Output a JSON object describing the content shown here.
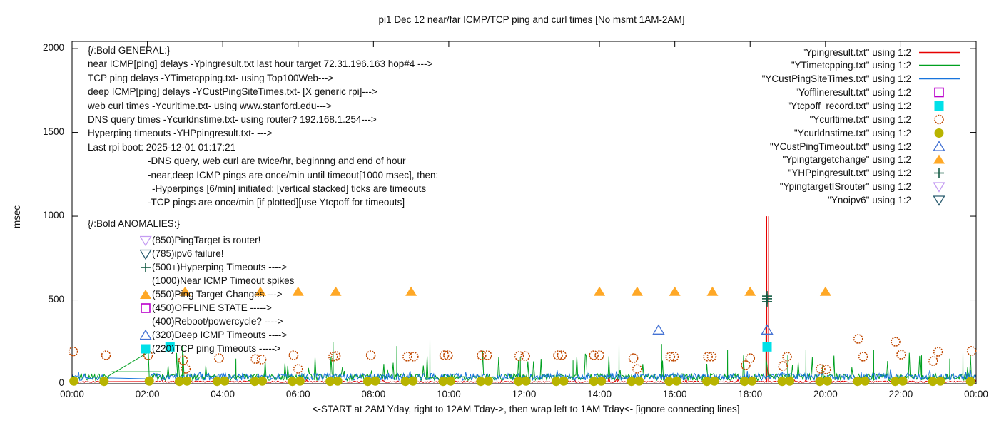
{
  "title": "pi1 Dec 12  near/far ICMP/TCP ping and curl times [No msmt 1AM-2AM]",
  "xlabel": "<-START at 2AM Yday, right to 12AM Tday->, then wrap left to 1AM Tday<- [ignore connecting lines]",
  "ylabel": "msec",
  "chart_data": {
    "type": "line",
    "title": "pi1 Dec 12  near/far ICMP/TCP ping and curl times [No msmt 1AM-2AM]",
    "xlabel": "<-START at 2AM Yday, right to 12AM Tday->, then wrap left to 1AM Tday<- [ignore connecting lines]",
    "ylabel": "msec",
    "x_axis": {
      "ticks": [
        "00:00",
        "02:00",
        "04:00",
        "06:00",
        "08:00",
        "10:00",
        "12:00",
        "14:00",
        "16:00",
        "18:00",
        "20:00",
        "22:00",
        "00:00"
      ],
      "tick_hours": [
        0,
        2,
        4,
        6,
        8,
        10,
        12,
        14,
        16,
        18,
        20,
        22,
        24
      ],
      "range_hours": [
        0,
        24
      ]
    },
    "y_axis": {
      "ticks": [
        0,
        500,
        1000,
        1500,
        2000
      ],
      "range": [
        0,
        2043
      ]
    },
    "measurement_gap": {
      "from_hour": 1,
      "to_hour": 2,
      "note": "No msmt 1AM-2AM"
    },
    "grid": false,
    "legend_position": "top-right",
    "noise_seed": 20251212,
    "series": [
      {
        "file": "Ypingresult.txt",
        "legend_label": "\"Ypingresult.txt\" using 1:2",
        "kind": "noisy-line",
        "swatch": "line",
        "color": "#e60000",
        "baseline": 7,
        "noise": 9,
        "minor_rate": 0.02,
        "minor_amp": 22,
        "spikes": [
          [
            18.44,
            1000
          ],
          [
            18.49,
            1000
          ]
        ]
      },
      {
        "file": "YTimetcpping.txt",
        "legend_label": "\"YTimetcpping.txt\" using 1:2",
        "kind": "noisy-line",
        "swatch": "line",
        "color": "#00a020",
        "baseline": 18,
        "noise": 42,
        "minor_rate": 0.05,
        "minor_amp": 150,
        "spikes": [
          [
            2.93,
            234
          ],
          [
            4.35,
            150
          ],
          [
            6.93,
            247
          ],
          [
            8.62,
            225
          ],
          [
            9.5,
            265
          ],
          [
            11.9,
            160
          ],
          [
            13.3,
            140
          ],
          [
            14.52,
            234
          ],
          [
            15.65,
            238
          ],
          [
            17.4,
            204
          ],
          [
            18.42,
            350
          ],
          [
            19.0,
            170
          ],
          [
            19.48,
            200
          ],
          [
            21.28,
            204
          ],
          [
            22.55,
            170
          ],
          [
            23.3,
            150
          ],
          [
            23.65,
            190
          ]
        ],
        "extra_segments": [
          {
            "from_hour": 1.05,
            "to_hour": 2.35,
            "value": 72
          }
        ]
      },
      {
        "file": "YCustPingSiteTimes.txt",
        "legend_label": "\"YCustPingSiteTimes.txt\" using 1:2",
        "kind": "noisy-line",
        "swatch": "line",
        "color": "#1874dc",
        "baseline": 20,
        "noise": 42,
        "minor_rate": 0.04,
        "minor_amp": 28,
        "spikes": []
      },
      {
        "file": "Yofflineresult.txt",
        "legend_label": "\"Yofflineresult.txt\" using 1:2",
        "kind": "scatter",
        "swatch": "square-open",
        "color": "#bb00cc",
        "marker": "square-open",
        "points": []
      },
      {
        "file": "Ytcpoff_record.txt",
        "legend_label": "\"Ytcpoff_record.txt\" using 1:2",
        "kind": "scatter",
        "swatch": "square-filled",
        "color": "#00e0e8",
        "marker": "square-filled",
        "points": [
          [
            2.6,
            220
          ],
          [
            18.45,
            220
          ]
        ]
      },
      {
        "file": "Ycurltime.txt",
        "legend_label": "\"Ycurltime.txt\" using 1:2",
        "kind": "scatter",
        "swatch": "circle-open",
        "color": "#c04800",
        "marker": "circle-open",
        "points": [
          [
            0.03,
            193
          ],
          [
            0.9,
            170
          ],
          [
            2.02,
            170
          ],
          [
            2.95,
            140
          ],
          [
            3.02,
            89
          ],
          [
            3.9,
            153
          ],
          [
            4.87,
            148
          ],
          [
            5.03,
            145
          ],
          [
            5.88,
            170
          ],
          [
            6.0,
            89
          ],
          [
            6.93,
            162
          ],
          [
            7.0,
            166
          ],
          [
            7.93,
            170
          ],
          [
            8.9,
            162
          ],
          [
            9.07,
            162
          ],
          [
            9.88,
            170
          ],
          [
            9.98,
            170
          ],
          [
            10.87,
            170
          ],
          [
            11.02,
            170
          ],
          [
            11.87,
            166
          ],
          [
            12.03,
            166
          ],
          [
            12.9,
            170
          ],
          [
            13.0,
            170
          ],
          [
            13.85,
            170
          ],
          [
            14.0,
            170
          ],
          [
            14.9,
            153
          ],
          [
            15.0,
            89
          ],
          [
            15.88,
            162
          ],
          [
            15.98,
            162
          ],
          [
            16.88,
            162
          ],
          [
            16.98,
            162
          ],
          [
            17.88,
            111
          ],
          [
            18.0,
            153
          ],
          [
            18.87,
            106
          ],
          [
            18.98,
            162
          ],
          [
            19.87,
            89
          ],
          [
            20.02,
            85
          ],
          [
            20.87,
            268
          ],
          [
            21.0,
            162
          ],
          [
            21.86,
            251
          ],
          [
            22.01,
            174
          ],
          [
            22.86,
            136
          ],
          [
            22.99,
            191
          ],
          [
            23.88,
            196
          ]
        ]
      },
      {
        "file": "Ycurldnstime.txt",
        "legend_label": "\"Ycurldnstime.txt\" using 1:2",
        "kind": "scatter",
        "swatch": "circle-filled",
        "color": "#b8b400",
        "marker": "circle-filled",
        "points": [
          [
            0.05,
            16
          ],
          [
            0.85,
            14
          ],
          [
            2.05,
            16
          ],
          [
            2.85,
            14
          ],
          [
            3.05,
            16
          ],
          [
            3.85,
            14
          ],
          [
            4.05,
            16
          ],
          [
            4.85,
            14
          ],
          [
            5.05,
            16
          ],
          [
            5.85,
            14
          ],
          [
            6.05,
            16
          ],
          [
            6.85,
            14
          ],
          [
            7.05,
            16
          ],
          [
            7.85,
            14
          ],
          [
            8.05,
            16
          ],
          [
            8.85,
            14
          ],
          [
            9.05,
            16
          ],
          [
            9.85,
            14
          ],
          [
            10.05,
            16
          ],
          [
            10.85,
            14
          ],
          [
            11.05,
            16
          ],
          [
            11.85,
            14
          ],
          [
            12.05,
            16
          ],
          [
            12.85,
            14
          ],
          [
            13.05,
            16
          ],
          [
            13.85,
            14
          ],
          [
            14.05,
            16
          ],
          [
            14.85,
            14
          ],
          [
            15.05,
            16
          ],
          [
            15.85,
            14
          ],
          [
            16.05,
            16
          ],
          [
            16.85,
            14
          ],
          [
            17.05,
            16
          ],
          [
            17.85,
            14
          ],
          [
            18.05,
            16
          ],
          [
            18.85,
            14
          ],
          [
            19.05,
            16
          ],
          [
            19.85,
            14
          ],
          [
            20.05,
            16
          ],
          [
            20.85,
            14
          ],
          [
            21.05,
            16
          ],
          [
            21.85,
            14
          ],
          [
            22.05,
            16
          ],
          [
            22.85,
            14
          ],
          [
            23.05,
            16
          ],
          [
            23.85,
            14
          ]
        ]
      },
      {
        "file": "YCustPingTimeout.txt",
        "legend_label": "\"YCustPingTimeout.txt\" using 1:2",
        "kind": "scatter",
        "swatch": "triangle-open",
        "color": "#4472d4",
        "marker": "triangle-open",
        "points": [
          [
            15.57,
            320
          ],
          [
            18.45,
            320
          ]
        ]
      },
      {
        "file": "Ypingtargetchange",
        "legend_label": "\"Ypingtargetchange\" using 1:2",
        "kind": "scatter",
        "swatch": "triangle-filled",
        "color": "#ffa826",
        "marker": "triangle-filled",
        "points": [
          [
            3,
            550
          ],
          [
            5,
            550
          ],
          [
            6,
            550
          ],
          [
            7,
            550
          ],
          [
            9,
            550
          ],
          [
            14,
            550
          ],
          [
            15,
            550
          ],
          [
            16,
            550
          ],
          [
            17,
            550
          ],
          [
            18,
            550
          ],
          [
            20,
            550
          ]
        ]
      },
      {
        "file": "YHPpingresult.txt",
        "legend_label": "\"YHPpingresult.txt\" using 1:2",
        "kind": "scatter",
        "swatch": "plus",
        "color": "#145c44",
        "marker": "plus",
        "points": [
          [
            18.45,
            490
          ],
          [
            18.45,
            507
          ],
          [
            18.45,
            523
          ]
        ]
      },
      {
        "file": "YpingtargetISrouter",
        "legend_label": "\"YpingtargetISrouter\" using 1:2",
        "kind": "scatter",
        "swatch": "triangle-down-open",
        "color": "#c49cf2",
        "marker": "triangle-down-open",
        "points": []
      },
      {
        "file": "Ynoipv6",
        "legend_label": "\"Ynoipv6\" using 1:2",
        "kind": "scatter",
        "swatch": "triangle-down-open",
        "color": "#2e5f72",
        "marker": "triangle-down-open",
        "points": []
      }
    ]
  },
  "annotations": {
    "general": {
      "header": "{/:Bold GENERAL:}",
      "lines": [
        {
          "text": "near ICMP[ping] delays -Ypingresult.txt last hour target 72.31.196.163 hop#4 --->",
          "indent": 0
        },
        {
          "text": "TCP ping delays -YTimetcpping.txt- using Top100Web--->",
          "indent": 0
        },
        {
          "text": "deep ICMP[ping] delays -YCustPingSiteTimes.txt- [X generic rpi]--->",
          "indent": 0
        },
        {
          "text": "web curl times -Ycurltime.txt- using www.stanford.edu--->",
          "indent": 0
        },
        {
          "text": "DNS query times -Ycurldnstime.txt- using router? 192.168.1.254--->",
          "indent": 0
        },
        {
          "text": "Hyperping timeouts -YHPpingresult.txt- --->",
          "indent": 0
        },
        {
          "text": "Last rpi boot: 2025-12-01 01:17:21",
          "indent": 0
        },
        {
          "text": "-DNS query, web curl are twice/hr, beginnng and end of hour",
          "indent": 1
        },
        {
          "text": "-near,deep ICMP pings are once/min until timeout[1000 msec], then:",
          "indent": 1
        },
        {
          "text": "-Hyperpings [6/min] initiated; [vertical stacked] ticks are timeouts",
          "indent": 2
        },
        {
          "text": "-TCP pings are once/min [if plotted][use Ytcpoff for timeouts]",
          "indent": 1
        }
      ]
    },
    "anomalies": {
      "header": "{/:Bold ANOMALIES:}",
      "items": [
        {
          "marker": "triangle-down-open",
          "color": "#c49cf2",
          "text": "(850)PingTarget is router!"
        },
        {
          "marker": "triangle-down-open",
          "color": "#2e5f72",
          "text": "(785)ipv6 failure!"
        },
        {
          "marker": "plus",
          "color": "#145c44",
          "text": "(500+)Hyperping Timeouts ---->"
        },
        {
          "marker": null,
          "color": null,
          "text": "(1000)Near ICMP Timeout spikes"
        },
        {
          "marker": "triangle-filled",
          "color": "#ffa826",
          "text": "(550)Ping Target Changes --->"
        },
        {
          "marker": "square-open",
          "color": "#bb00cc",
          "text": "(450)OFFLINE STATE ----->"
        },
        {
          "marker": null,
          "color": null,
          "text": "(400)Reboot/powercycle? ---->"
        },
        {
          "marker": "triangle-open",
          "color": "#4472d4",
          "text": "(320)Deep ICMP Timeouts ---->"
        },
        {
          "marker": "square-filled",
          "color": "#00e0e8",
          "text": "(220)TCP ping Timeouts ----->"
        }
      ]
    }
  }
}
